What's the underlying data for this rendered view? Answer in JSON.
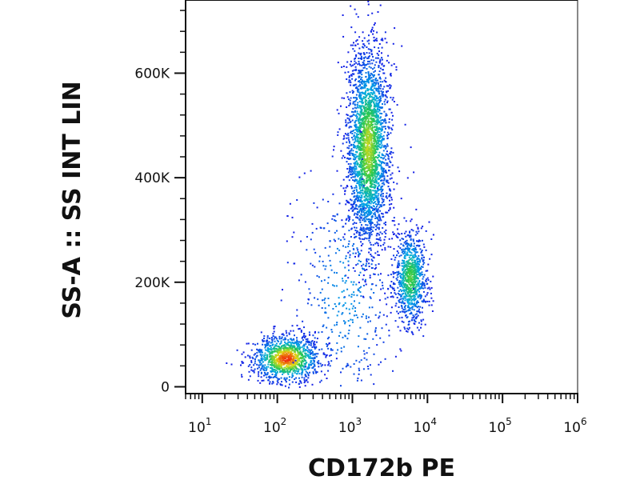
{
  "chart_data": {
    "type": "scatter",
    "title": "",
    "xlabel": "CD172b PE",
    "ylabel": "SS-A :: SS INT LIN",
    "x_scale": "log",
    "xlim": [
      6,
      1000000
    ],
    "ylim": [
      -10000,
      740000
    ],
    "x_ticks": [
      {
        "value": 10,
        "base": "10",
        "exp": "1"
      },
      {
        "value": 100,
        "base": "10",
        "exp": "2"
      },
      {
        "value": 1000,
        "base": "10",
        "exp": "3"
      },
      {
        "value": 10000,
        "base": "10",
        "exp": "4"
      },
      {
        "value": 100000,
        "base": "10",
        "exp": "5"
      },
      {
        "value": 1000000,
        "base": "10",
        "exp": "6"
      }
    ],
    "y_ticks": [
      {
        "value": 0,
        "label": "0"
      },
      {
        "value": 200000,
        "label": "200K"
      },
      {
        "value": 400000,
        "label": "400K"
      },
      {
        "value": 600000,
        "label": "600K"
      }
    ],
    "grid": false,
    "legend": "none",
    "color_scale": "density (blue → cyan → green → yellow → red)",
    "populations": [
      {
        "center_x": 130,
        "center_y": 55000,
        "spread_log10_x": 0.22,
        "spread_y": 22000,
        "share": 0.22,
        "peak_density": "red"
      },
      {
        "center_x": 1600,
        "center_y": 460000,
        "spread_log10_x": 0.14,
        "spread_y": 95000,
        "share": 0.52,
        "peak_density": "yellow-green"
      },
      {
        "center_x": 5800,
        "center_y": 210000,
        "spread_log10_x": 0.11,
        "spread_y": 45000,
        "share": 0.17,
        "peak_density": "green"
      },
      {
        "center_x": 800,
        "center_y": 180000,
        "spread_log10_x": 0.35,
        "spread_y": 120000,
        "share": 0.09,
        "peak_density": "blue"
      }
    ]
  },
  "colors": {
    "background": "#ffffff",
    "axis": "#111111",
    "density_low": "#1a1aff",
    "density_high": "#ff1a00"
  }
}
